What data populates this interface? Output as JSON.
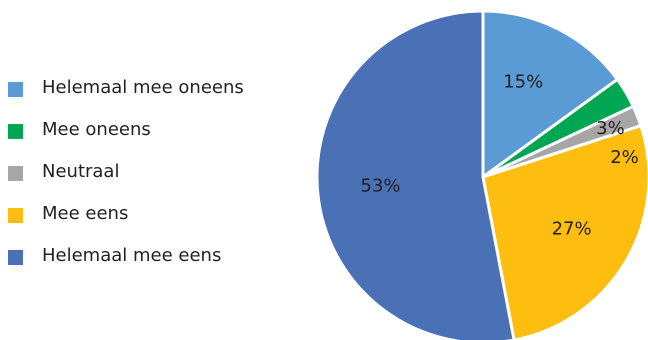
{
  "chart_data": {
    "type": "pie",
    "categories": [
      "Helemaal mee oneens",
      "Mee oneens",
      "Neutraal",
      "Mee eens",
      "Helemaal mee eens"
    ],
    "values": [
      15,
      3,
      2,
      27,
      53
    ],
    "labels": [
      "15%",
      "3%",
      "2%",
      "27%",
      "53%"
    ],
    "colors": [
      "#5b9bd5",
      "#00a651",
      "#a6a6a6",
      "#fdbe10",
      "#4a70b6"
    ],
    "legend_position": "left"
  }
}
